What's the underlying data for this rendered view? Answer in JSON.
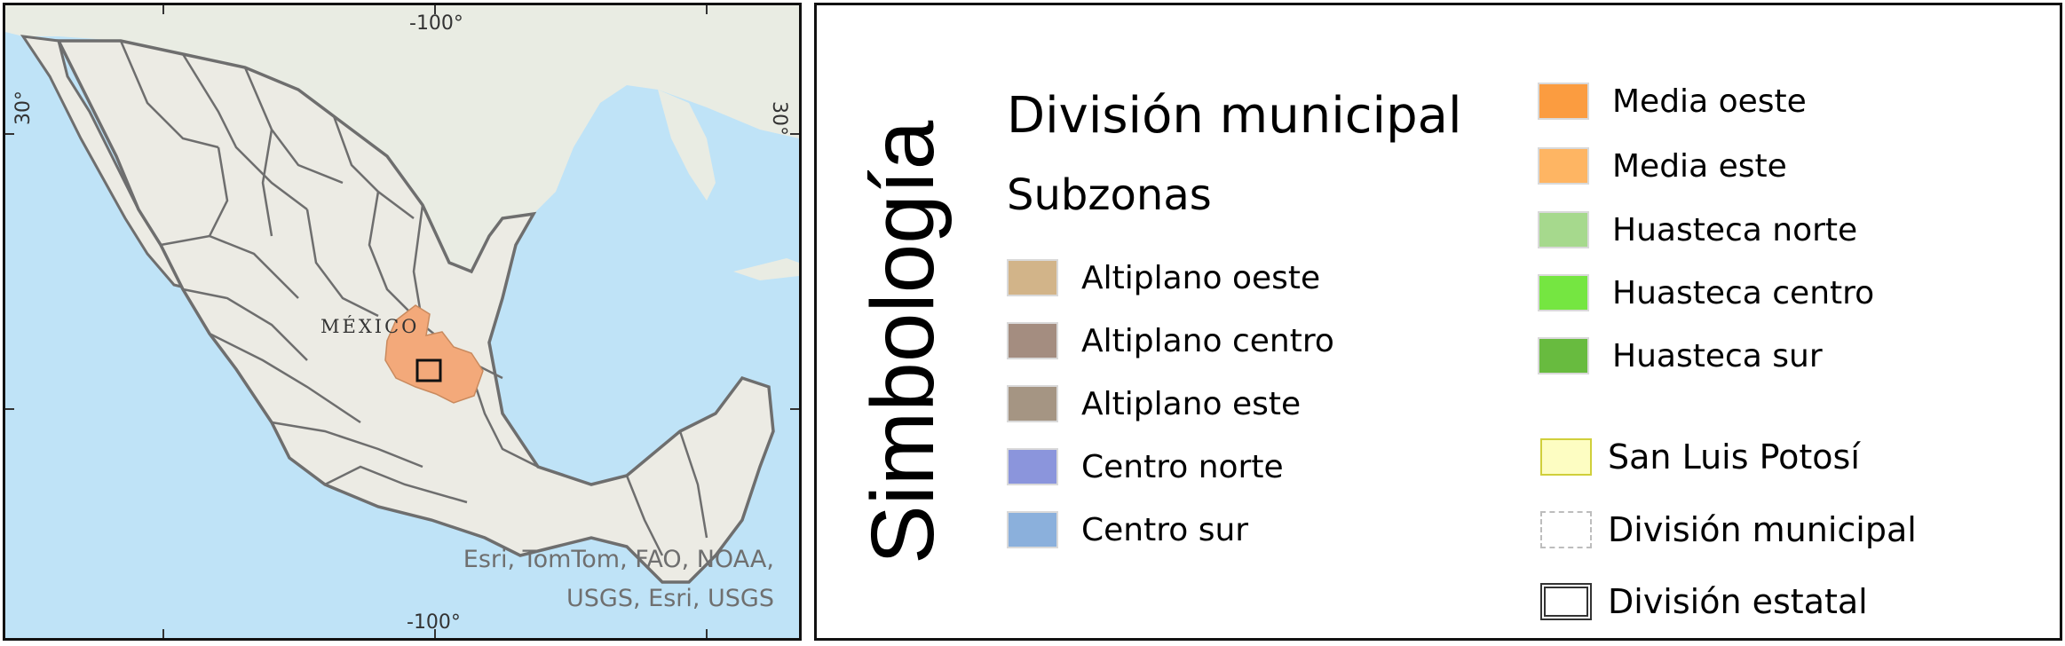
{
  "map": {
    "lon_top": "-100°",
    "lon_bottom": "-100°",
    "lat_left": "30°",
    "lat_right": "30°",
    "country_label": "MÉXICO",
    "attribution_line1": "Esri, TomTom, FAO, NOAA,",
    "attribution_line2": "USGS, Esri, USGS",
    "colors": {
      "ocean": "#bfe3f7",
      "land": "#ecebe4",
      "highlight": "#f3a97a",
      "border": "#6e6e6e"
    }
  },
  "legend": {
    "heading": "Simbología",
    "title": "División municipal",
    "subtitle": "Subzonas",
    "subzonas": [
      {
        "label": "Altiplano oeste",
        "color": "#d2b489"
      },
      {
        "label": "Altiplano centro",
        "color": "#a48d80"
      },
      {
        "label": "Altiplano este",
        "color": "#a59583"
      },
      {
        "label": "Centro norte",
        "color": "#8b95dc"
      },
      {
        "label": "Centro sur",
        "color": "#8bb0dc"
      },
      {
        "label": "Media oeste",
        "color": "#fb9c40"
      },
      {
        "label": "Media este",
        "color": "#feb563"
      },
      {
        "label": "Huasteca norte",
        "color": "#a6d98d"
      },
      {
        "label": "Huasteca centro",
        "color": "#75e641"
      },
      {
        "label": "Huasteca sur",
        "color": "#68bb3f"
      }
    ],
    "state": {
      "label": "San Luis Potosí",
      "color": "#fdfdc2"
    },
    "municipal": {
      "label": "División municipal"
    },
    "estatal": {
      "label": "División estatal"
    }
  }
}
